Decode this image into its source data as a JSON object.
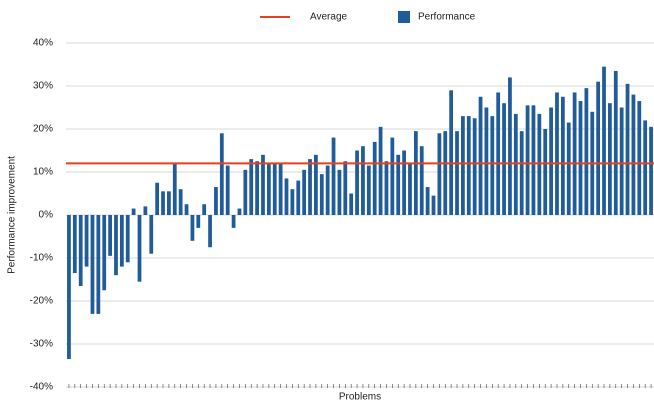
{
  "chart_data": {
    "type": "bar",
    "x_label": "Problems",
    "y_label": "Performance improvement",
    "categories": [
      null,
      null,
      null,
      null,
      null,
      null,
      null,
      null,
      null,
      null,
      null,
      null,
      null,
      null,
      null,
      null,
      null,
      null,
      null,
      null,
      null,
      null,
      null,
      null,
      null,
      null,
      null,
      null,
      null,
      null,
      null,
      null,
      null,
      null,
      null,
      null,
      null,
      null,
      null,
      null,
      null,
      null,
      null,
      null,
      null,
      null,
      null,
      null,
      null,
      null,
      null,
      null,
      null,
      null,
      null,
      null,
      null,
      null,
      null,
      null,
      null,
      null,
      null,
      null,
      null,
      null,
      null,
      null,
      null,
      null,
      null,
      null,
      null,
      null,
      null,
      null,
      null,
      null,
      null,
      null,
      null,
      null,
      null,
      null,
      null,
      null,
      null,
      null,
      null,
      null,
      null,
      null,
      null,
      null,
      null,
      null,
      null,
      null,
      null,
      null
    ],
    "series": [
      {
        "name": "Performance",
        "color": "#1f5c99",
        "values": [
          -33.5,
          -13.5,
          -16.5,
          -12,
          -23,
          -23,
          -17.5,
          -9.5,
          -14,
          -12,
          -11,
          1.5,
          -15.5,
          2,
          -9,
          7.5,
          5.5,
          5.5,
          12,
          6,
          2.5,
          -6,
          -3,
          2.5,
          -7.5,
          6.5,
          19,
          11.5,
          -3,
          1.5,
          10.5,
          13,
          12.5,
          14,
          12,
          12,
          12,
          8.5,
          6,
          8,
          10.5,
          13,
          14,
          9.5,
          11.5,
          18,
          10.5,
          12.5,
          5,
          15,
          16,
          11.5,
          17,
          20.5,
          12.5,
          18,
          14,
          15,
          12,
          19.5,
          16,
          6.5,
          4.5,
          19,
          19.5,
          29,
          19.5,
          23,
          23,
          22.5,
          27.5,
          25,
          23,
          28.5,
          26,
          32,
          23.5,
          19.5,
          25.5,
          25.5,
          23.5,
          20,
          25,
          28.5,
          27.5,
          21.5,
          28.5,
          26.5,
          29.5,
          24,
          31,
          34.5,
          26,
          33.5,
          25,
          30.5,
          28,
          26.5,
          22,
          20.5
        ]
      }
    ],
    "average": {
      "name": "Average",
      "value": 12,
      "color": "#e8401c"
    },
    "ylim": [
      -40,
      40
    ],
    "yticks": [
      {
        "value": -40,
        "label": "-40%"
      },
      {
        "value": -30,
        "label": "-30%"
      },
      {
        "value": -20,
        "label": "-20%"
      },
      {
        "value": -10,
        "label": "-10%"
      },
      {
        "value": 0,
        "label": "0%"
      },
      {
        "value": 10,
        "label": "10%"
      },
      {
        "value": 20,
        "label": "20%"
      },
      {
        "value": 30,
        "label": "30%"
      },
      {
        "value": 40,
        "label": "40%"
      }
    ],
    "grid": true
  }
}
